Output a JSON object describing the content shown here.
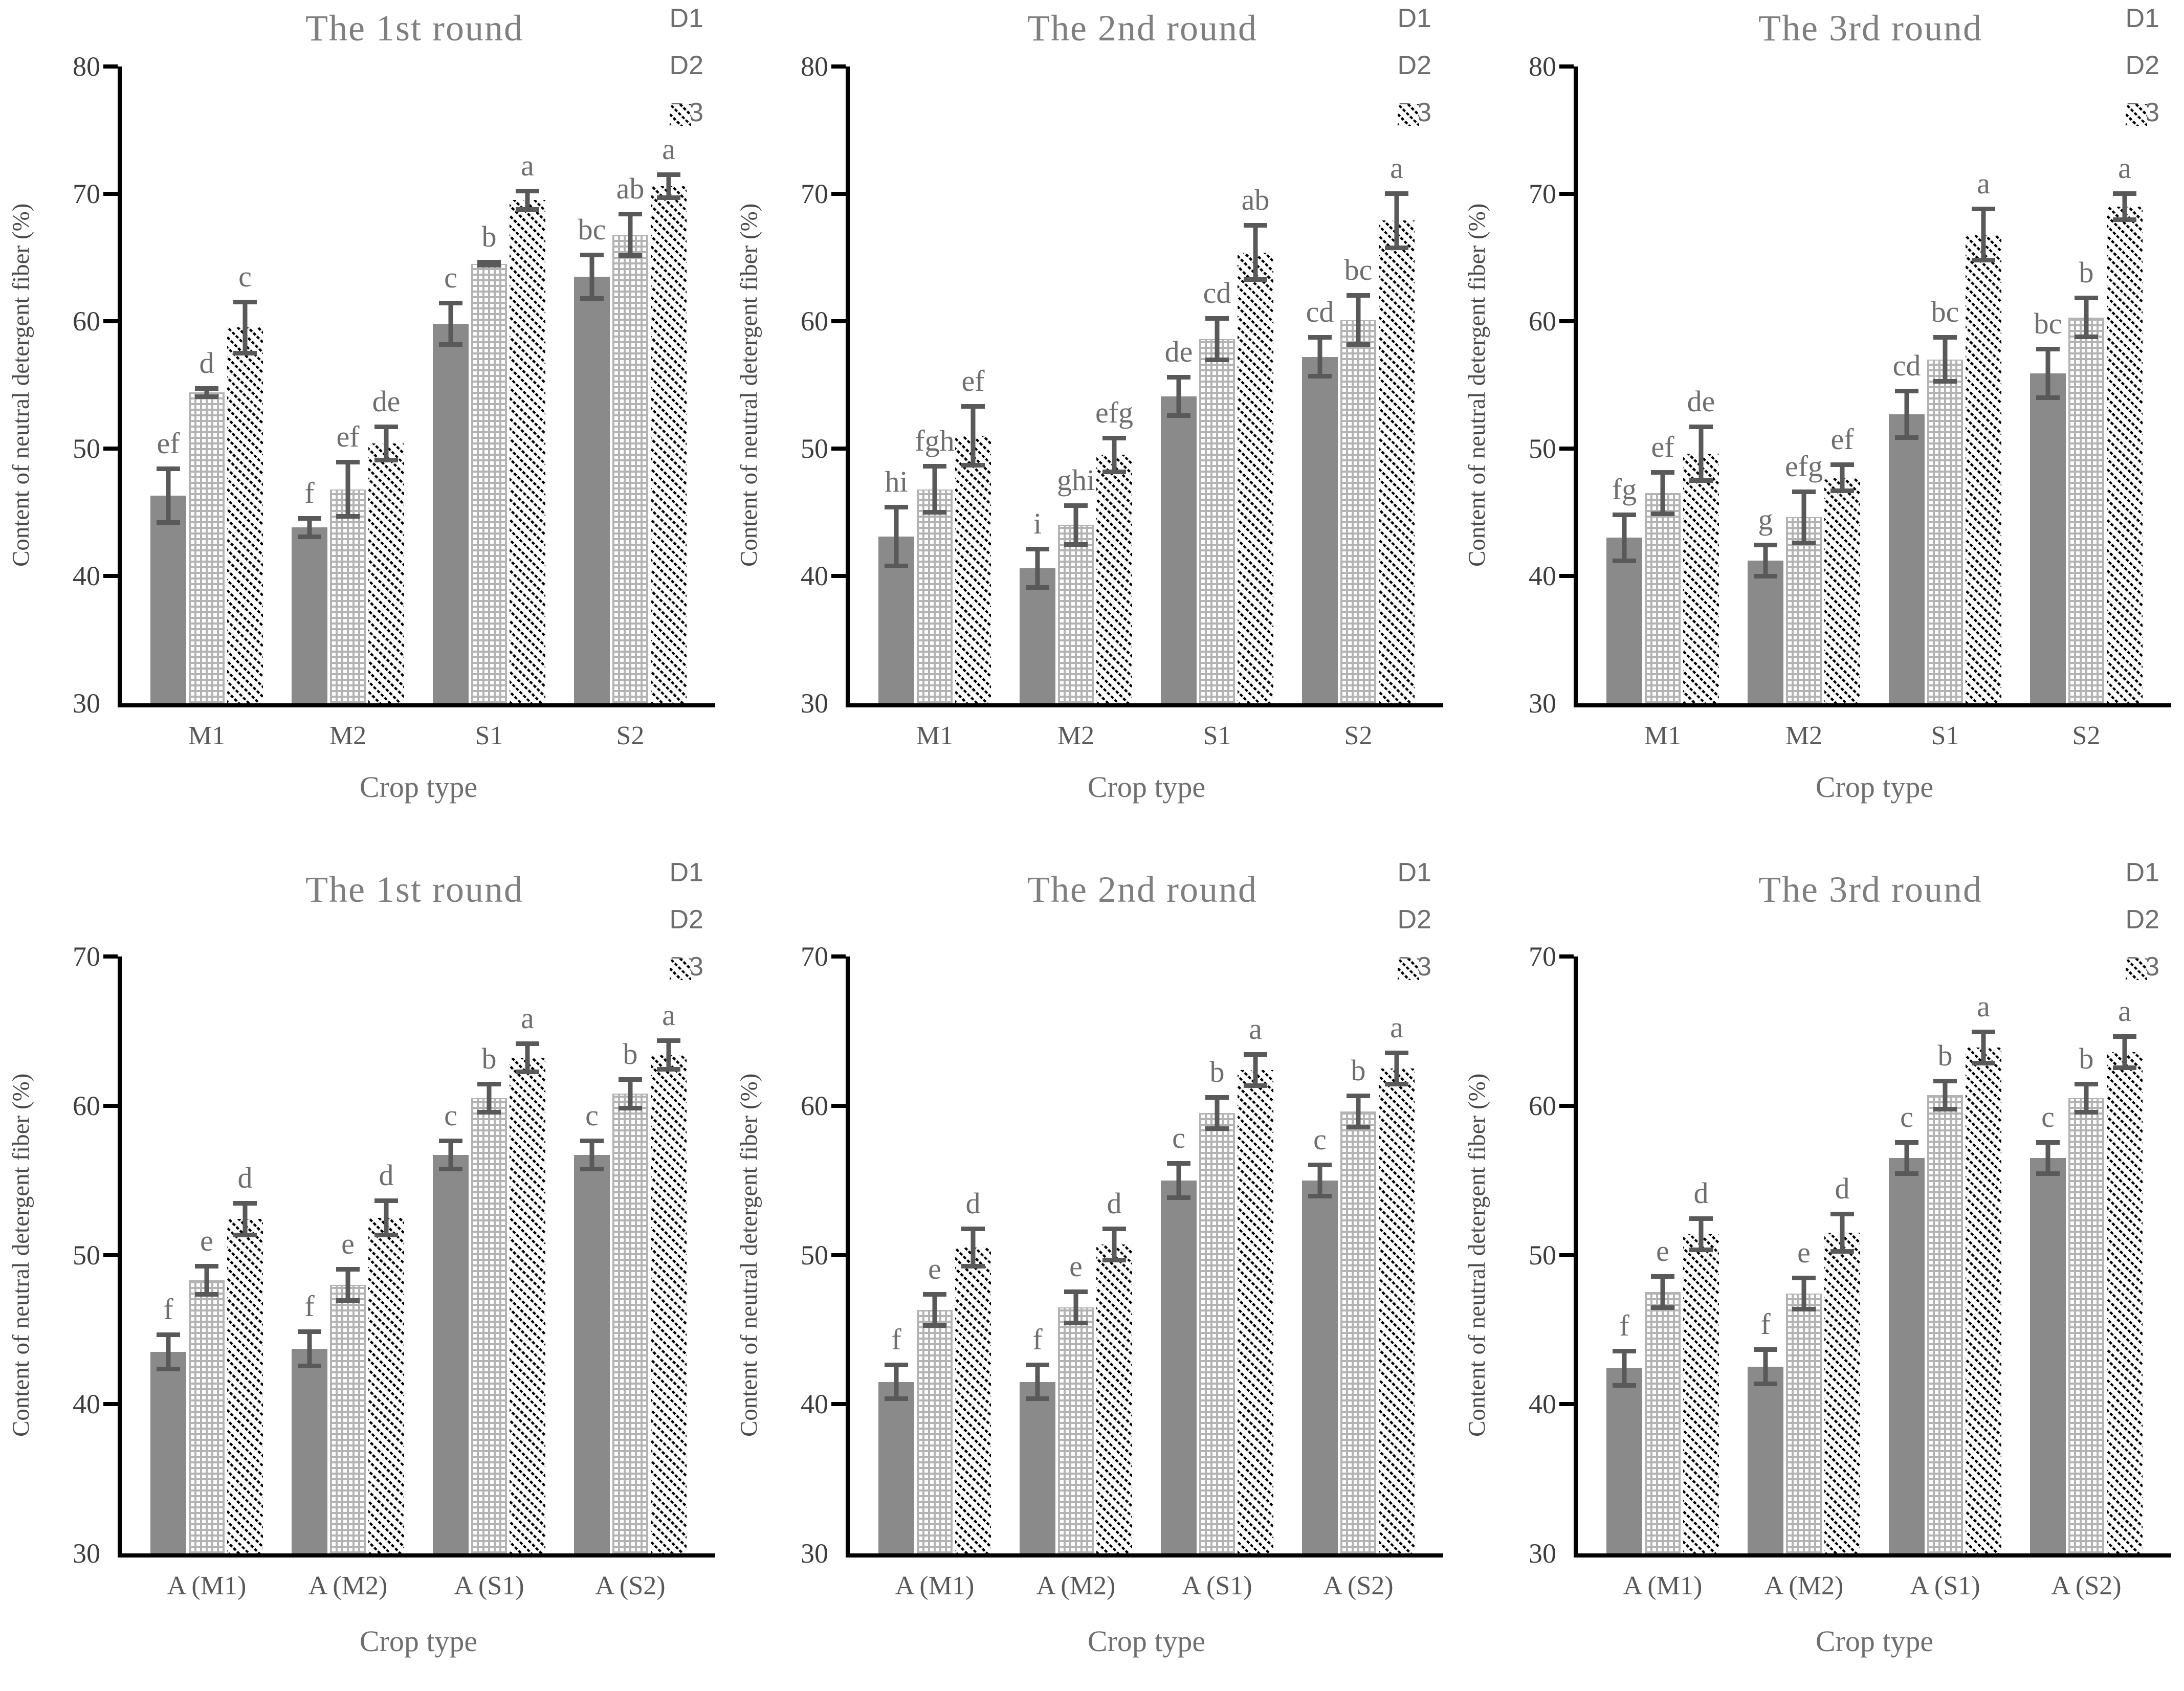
{
  "figure": {
    "xlabel": "Crop type",
    "ylabel": "Content of neutral detergent fiber（%）",
    "legend": [
      "D1",
      "D2",
      "D3"
    ],
    "colors": {
      "d1_fill": "#8a8a8a",
      "d2_fill": "#b3b3b3",
      "d3_stripe": "#000000",
      "error_bar": "#595959",
      "title_text": "#7f7f7f",
      "letter_text": "#6e6e6e",
      "axis": "#000000"
    }
  },
  "chart_data": [
    {
      "type": "bar",
      "title": "The 1st round",
      "xlabel": "Crop type",
      "ylabel": "Content of neutral detergent fiber（%）",
      "ylim": [
        30,
        80
      ],
      "ytick_step": 10,
      "grid": false,
      "legend_position": "top-right",
      "categories": [
        "M1",
        "M2",
        "S1",
        "S2"
      ],
      "series": [
        {
          "name": "D1",
          "values": [
            46.3,
            43.8,
            59.8,
            63.5
          ],
          "errors": [
            2.3,
            0.9,
            1.8,
            1.9
          ],
          "letters": [
            "ef",
            "f",
            "c",
            "bc"
          ]
        },
        {
          "name": "D2",
          "values": [
            54.4,
            46.8,
            64.5,
            66.8
          ],
          "errors": [
            0.5,
            2.3,
            0.3,
            1.8
          ],
          "letters": [
            "d",
            "ef",
            "b",
            "ab"
          ]
        },
        {
          "name": "D3",
          "values": [
            59.5,
            50.4,
            69.5,
            70.6
          ],
          "errors": [
            2.2,
            1.5,
            0.9,
            1.1
          ],
          "letters": [
            "c",
            "de",
            "a",
            "a"
          ]
        }
      ]
    },
    {
      "type": "bar",
      "title": "The 2nd round",
      "xlabel": "Crop type",
      "ylabel": "Content of neutral detergent fiber（%）",
      "ylim": [
        30,
        80
      ],
      "ytick_step": 10,
      "grid": false,
      "legend_position": "top-right",
      "categories": [
        "M1",
        "M2",
        "S1",
        "S2"
      ],
      "series": [
        {
          "name": "D1",
          "values": [
            43.1,
            40.6,
            54.1,
            57.2
          ],
          "errors": [
            2.5,
            1.7,
            1.7,
            1.7
          ],
          "letters": [
            "hi",
            "i",
            "de",
            "cd"
          ]
        },
        {
          "name": "D2",
          "values": [
            46.8,
            44.0,
            58.6,
            60.1
          ],
          "errors": [
            2.0,
            1.7,
            1.8,
            2.1
          ],
          "letters": [
            "fgh",
            "ghi",
            "cd",
            "bc"
          ]
        },
        {
          "name": "D3",
          "values": [
            51.0,
            49.5,
            65.4,
            67.9
          ],
          "errors": [
            2.5,
            1.5,
            2.3,
            2.3
          ],
          "letters": [
            "ef",
            "efg",
            "ab",
            "a"
          ]
        }
      ]
    },
    {
      "type": "bar",
      "title": "The 3rd round",
      "xlabel": "Crop type",
      "ylabel": "Content of neutral detergent fiber（%）",
      "ylim": [
        30,
        80
      ],
      "ytick_step": 10,
      "grid": false,
      "legend_position": "top-right",
      "categories": [
        "M1",
        "M2",
        "S1",
        "S2"
      ],
      "series": [
        {
          "name": "D1",
          "values": [
            43.0,
            41.2,
            52.7,
            55.9
          ],
          "errors": [
            2.0,
            1.4,
            2.0,
            2.1
          ],
          "letters": [
            "fg",
            "g",
            "cd",
            "bc"
          ]
        },
        {
          "name": "D2",
          "values": [
            46.5,
            44.6,
            57.0,
            60.3
          ],
          "errors": [
            1.8,
            2.2,
            1.9,
            1.7
          ],
          "letters": [
            "ef",
            "efg",
            "bc",
            "b"
          ]
        },
        {
          "name": "D3",
          "values": [
            49.6,
            47.7,
            66.8,
            69.0
          ],
          "errors": [
            2.3,
            1.2,
            2.2,
            1.2
          ],
          "letters": [
            "de",
            "ef",
            "a",
            "a"
          ]
        }
      ]
    },
    {
      "type": "bar",
      "title": "The 1st round",
      "xlabel": "Crop type",
      "ylabel": "Content of neutral detergent fiber（%）",
      "ylim": [
        30,
        70
      ],
      "ytick_step": 10,
      "grid": false,
      "legend_position": "top-right",
      "categories": [
        "A（M1）",
        "A（M2）",
        "A（S1）",
        "A（S2）"
      ],
      "series": [
        {
          "name": "D1",
          "values": [
            43.5,
            43.7,
            56.7,
            56.7
          ],
          "errors": [
            1.3,
            1.3,
            1.1,
            1.1
          ],
          "letters": [
            "f",
            "f",
            "c",
            "c"
          ]
        },
        {
          "name": "D2",
          "values": [
            48.3,
            48.0,
            60.5,
            60.8
          ],
          "errors": [
            1.1,
            1.2,
            1.1,
            1.1
          ],
          "letters": [
            "e",
            "e",
            "b",
            "b"
          ]
        },
        {
          "name": "D3",
          "values": [
            52.4,
            52.5,
            63.2,
            63.4
          ],
          "errors": [
            1.2,
            1.3,
            1.1,
            1.1
          ],
          "letters": [
            "d",
            "d",
            "a",
            "a"
          ]
        }
      ]
    },
    {
      "type": "bar",
      "title": "The 2nd round",
      "xlabel": "Crop type",
      "ylabel": "Content of neutral detergent fiber（%）",
      "ylim": [
        30,
        70
      ],
      "ytick_step": 10,
      "grid": false,
      "legend_position": "top-right",
      "categories": [
        "A（M1）",
        "A（M2）",
        "A（S1）",
        "A（S2）"
      ],
      "series": [
        {
          "name": "D1",
          "values": [
            41.5,
            41.5,
            55.0,
            55.0
          ],
          "errors": [
            1.3,
            1.3,
            1.3,
            1.2
          ],
          "letters": [
            "f",
            "f",
            "c",
            "c"
          ]
        },
        {
          "name": "D2",
          "values": [
            46.3,
            46.5,
            59.5,
            59.6
          ],
          "errors": [
            1.2,
            1.2,
            1.2,
            1.2
          ],
          "letters": [
            "e",
            "e",
            "b",
            "b"
          ]
        },
        {
          "name": "D3",
          "values": [
            50.5,
            50.7,
            62.4,
            62.5
          ],
          "errors": [
            1.4,
            1.2,
            1.2,
            1.2
          ],
          "letters": [
            "d",
            "d",
            "a",
            "a"
          ]
        }
      ]
    },
    {
      "type": "bar",
      "title": "The 3rd round",
      "xlabel": "Crop type",
      "ylabel": "Content of neutral detergent fiber（%）",
      "ylim": [
        30,
        70
      ],
      "ytick_step": 10,
      "grid": false,
      "legend_position": "top-right",
      "categories": [
        "A（M1）",
        "A（M2）",
        "A（S1）",
        "A（S2）"
      ],
      "series": [
        {
          "name": "D1",
          "values": [
            42.4,
            42.5,
            56.5,
            56.5
          ],
          "errors": [
            1.3,
            1.3,
            1.2,
            1.2
          ],
          "letters": [
            "f",
            "f",
            "c",
            "c"
          ]
        },
        {
          "name": "D2",
          "values": [
            47.5,
            47.4,
            60.7,
            60.5
          ],
          "errors": [
            1.2,
            1.2,
            1.1,
            1.1
          ],
          "letters": [
            "e",
            "e",
            "b",
            "b"
          ]
        },
        {
          "name": "D3",
          "values": [
            51.4,
            51.5,
            63.9,
            63.6
          ],
          "errors": [
            1.2,
            1.4,
            1.2,
            1.2
          ],
          "letters": [
            "d",
            "d",
            "a",
            "a"
          ]
        }
      ]
    }
  ]
}
